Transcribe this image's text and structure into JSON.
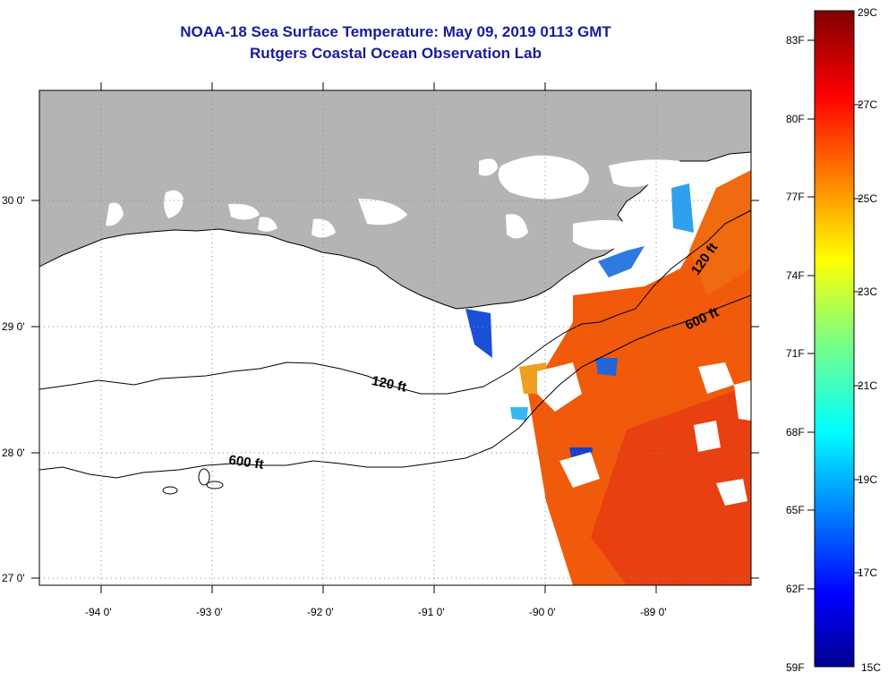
{
  "title": "NOAA-18 Sea Surface Temperature:  May 09, 2019 0113 GMT",
  "subtitle": "Rutgers Coastal Ocean Observation Lab",
  "map": {
    "lon_labels": [
      "-94 0'",
      "-93 0'",
      "-92 0'",
      "-91 0'",
      "-90 0'",
      "-89 0'"
    ],
    "lat_labels": [
      "30 0'",
      "29 0'",
      "28 0'",
      "27 0'"
    ],
    "contour_labels": {
      "c120_west": "120 ft",
      "c600_west": "600 ft",
      "c120_east": "120 ft",
      "c600_east": "600 ft"
    },
    "colors": {
      "land": "#b4b4b4",
      "cloud": "#ffffff",
      "sst_warm": "#f25a0a",
      "sst_cold": "#1a4fd8"
    }
  },
  "colorbar": {
    "fahrenheit_labels": [
      "83F",
      "80F",
      "77F",
      "74F",
      "71F",
      "68F",
      "65F",
      "62F",
      "59F"
    ],
    "celsius_labels": [
      "29C",
      "27C",
      "25C",
      "23C",
      "21C",
      "19C",
      "17C",
      "15C"
    ],
    "range_c": [
      15,
      29
    ],
    "colormap": "jet"
  }
}
